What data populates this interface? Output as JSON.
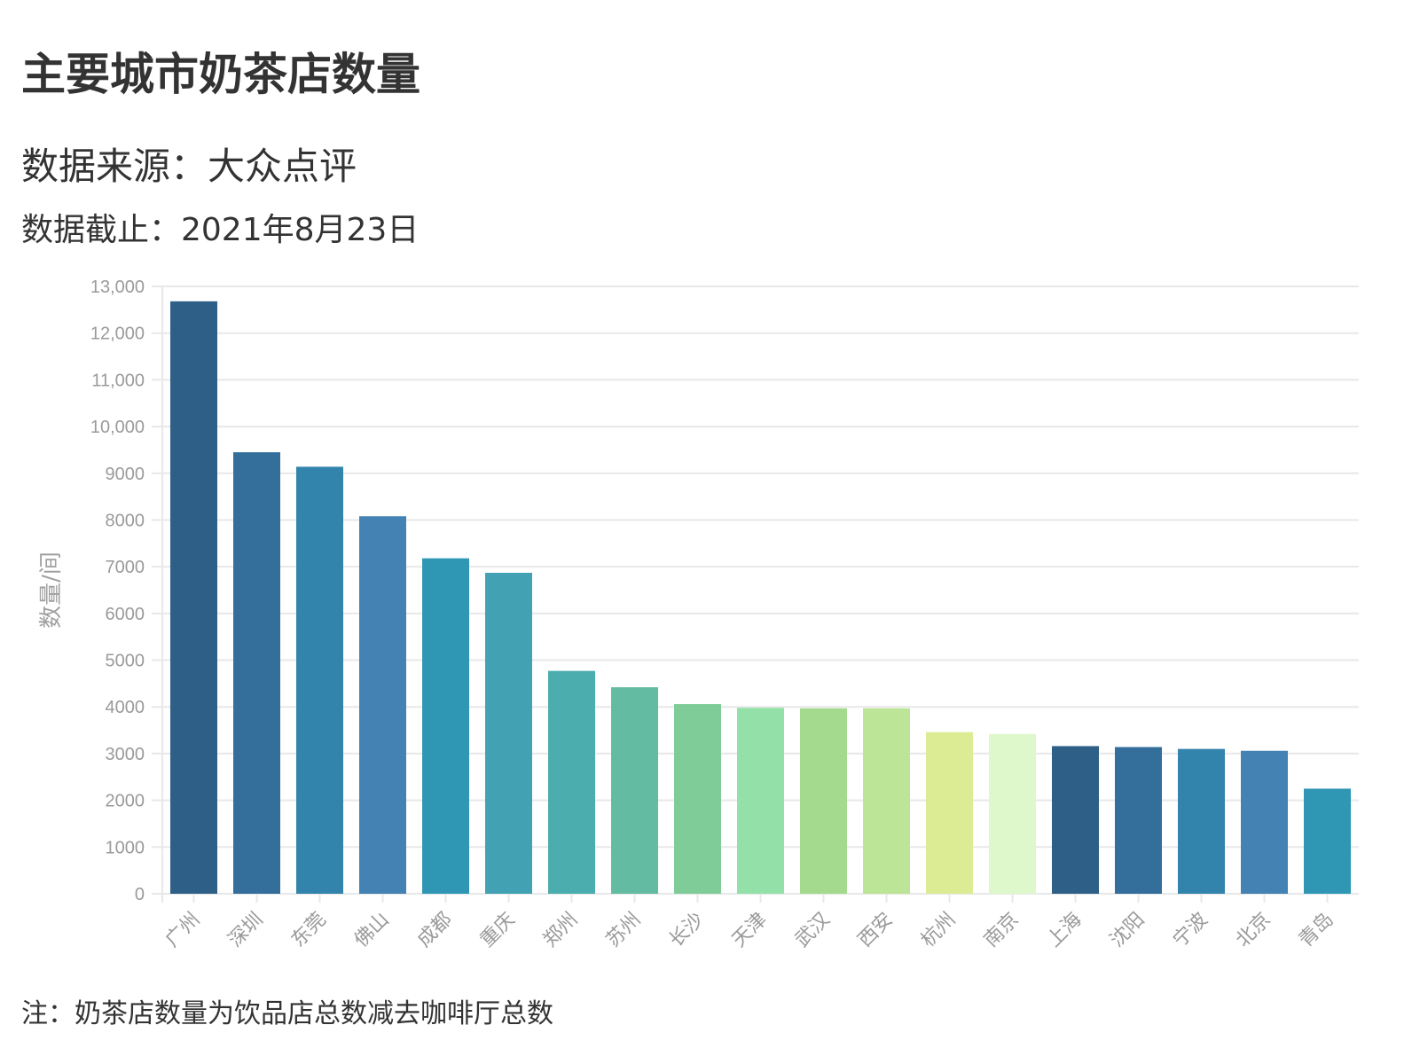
{
  "header": {
    "title": "主要城市奶茶店数量",
    "subtitle": "数据来源：大众点评",
    "date_line": "数据截止：2021年8月23日"
  },
  "footer": {
    "note": "注：奶茶店数量为饮品店总数减去咖啡厅总数"
  },
  "chart_data": {
    "type": "bar",
    "categories": [
      "广州",
      "深圳",
      "东莞",
      "佛山",
      "成都",
      "重庆",
      "郑州",
      "苏州",
      "长沙",
      "天津",
      "武汉",
      "西安",
      "杭州",
      "南京",
      "上海",
      "沈阳",
      "宁波",
      "北京",
      "青岛"
    ],
    "values": [
      12680,
      9450,
      9140,
      8080,
      7180,
      6870,
      4770,
      4420,
      4060,
      3980,
      3970,
      3970,
      3460,
      3420,
      3160,
      3140,
      3100,
      3060,
      2250
    ],
    "colors": [
      "#2e5f86",
      "#346f9c",
      "#3384ad",
      "#4382b3",
      "#2f97b4",
      "#42a1b3",
      "#4badad",
      "#63bca1",
      "#80cc98",
      "#93e0a8",
      "#a4da8e",
      "#bde597",
      "#dcec95",
      "#def8cc",
      "#2e5f86",
      "#346f9c",
      "#3384ad",
      "#4382b3",
      "#2f97b4"
    ],
    "ylabel": "数量/间",
    "xlabel": "",
    "ylim": [
      0,
      13000
    ],
    "yticks": [
      0,
      1000,
      2000,
      3000,
      4000,
      5000,
      6000,
      7000,
      8000,
      9000,
      10000,
      11000,
      12000,
      13000
    ],
    "ytick_labels": [
      "0",
      "1000",
      "2000",
      "3000",
      "4000",
      "5000",
      "6000",
      "7000",
      "8000",
      "9000",
      "10,000",
      "11,000",
      "12,000",
      "13,000"
    ],
    "grid": true,
    "legend": "none"
  }
}
